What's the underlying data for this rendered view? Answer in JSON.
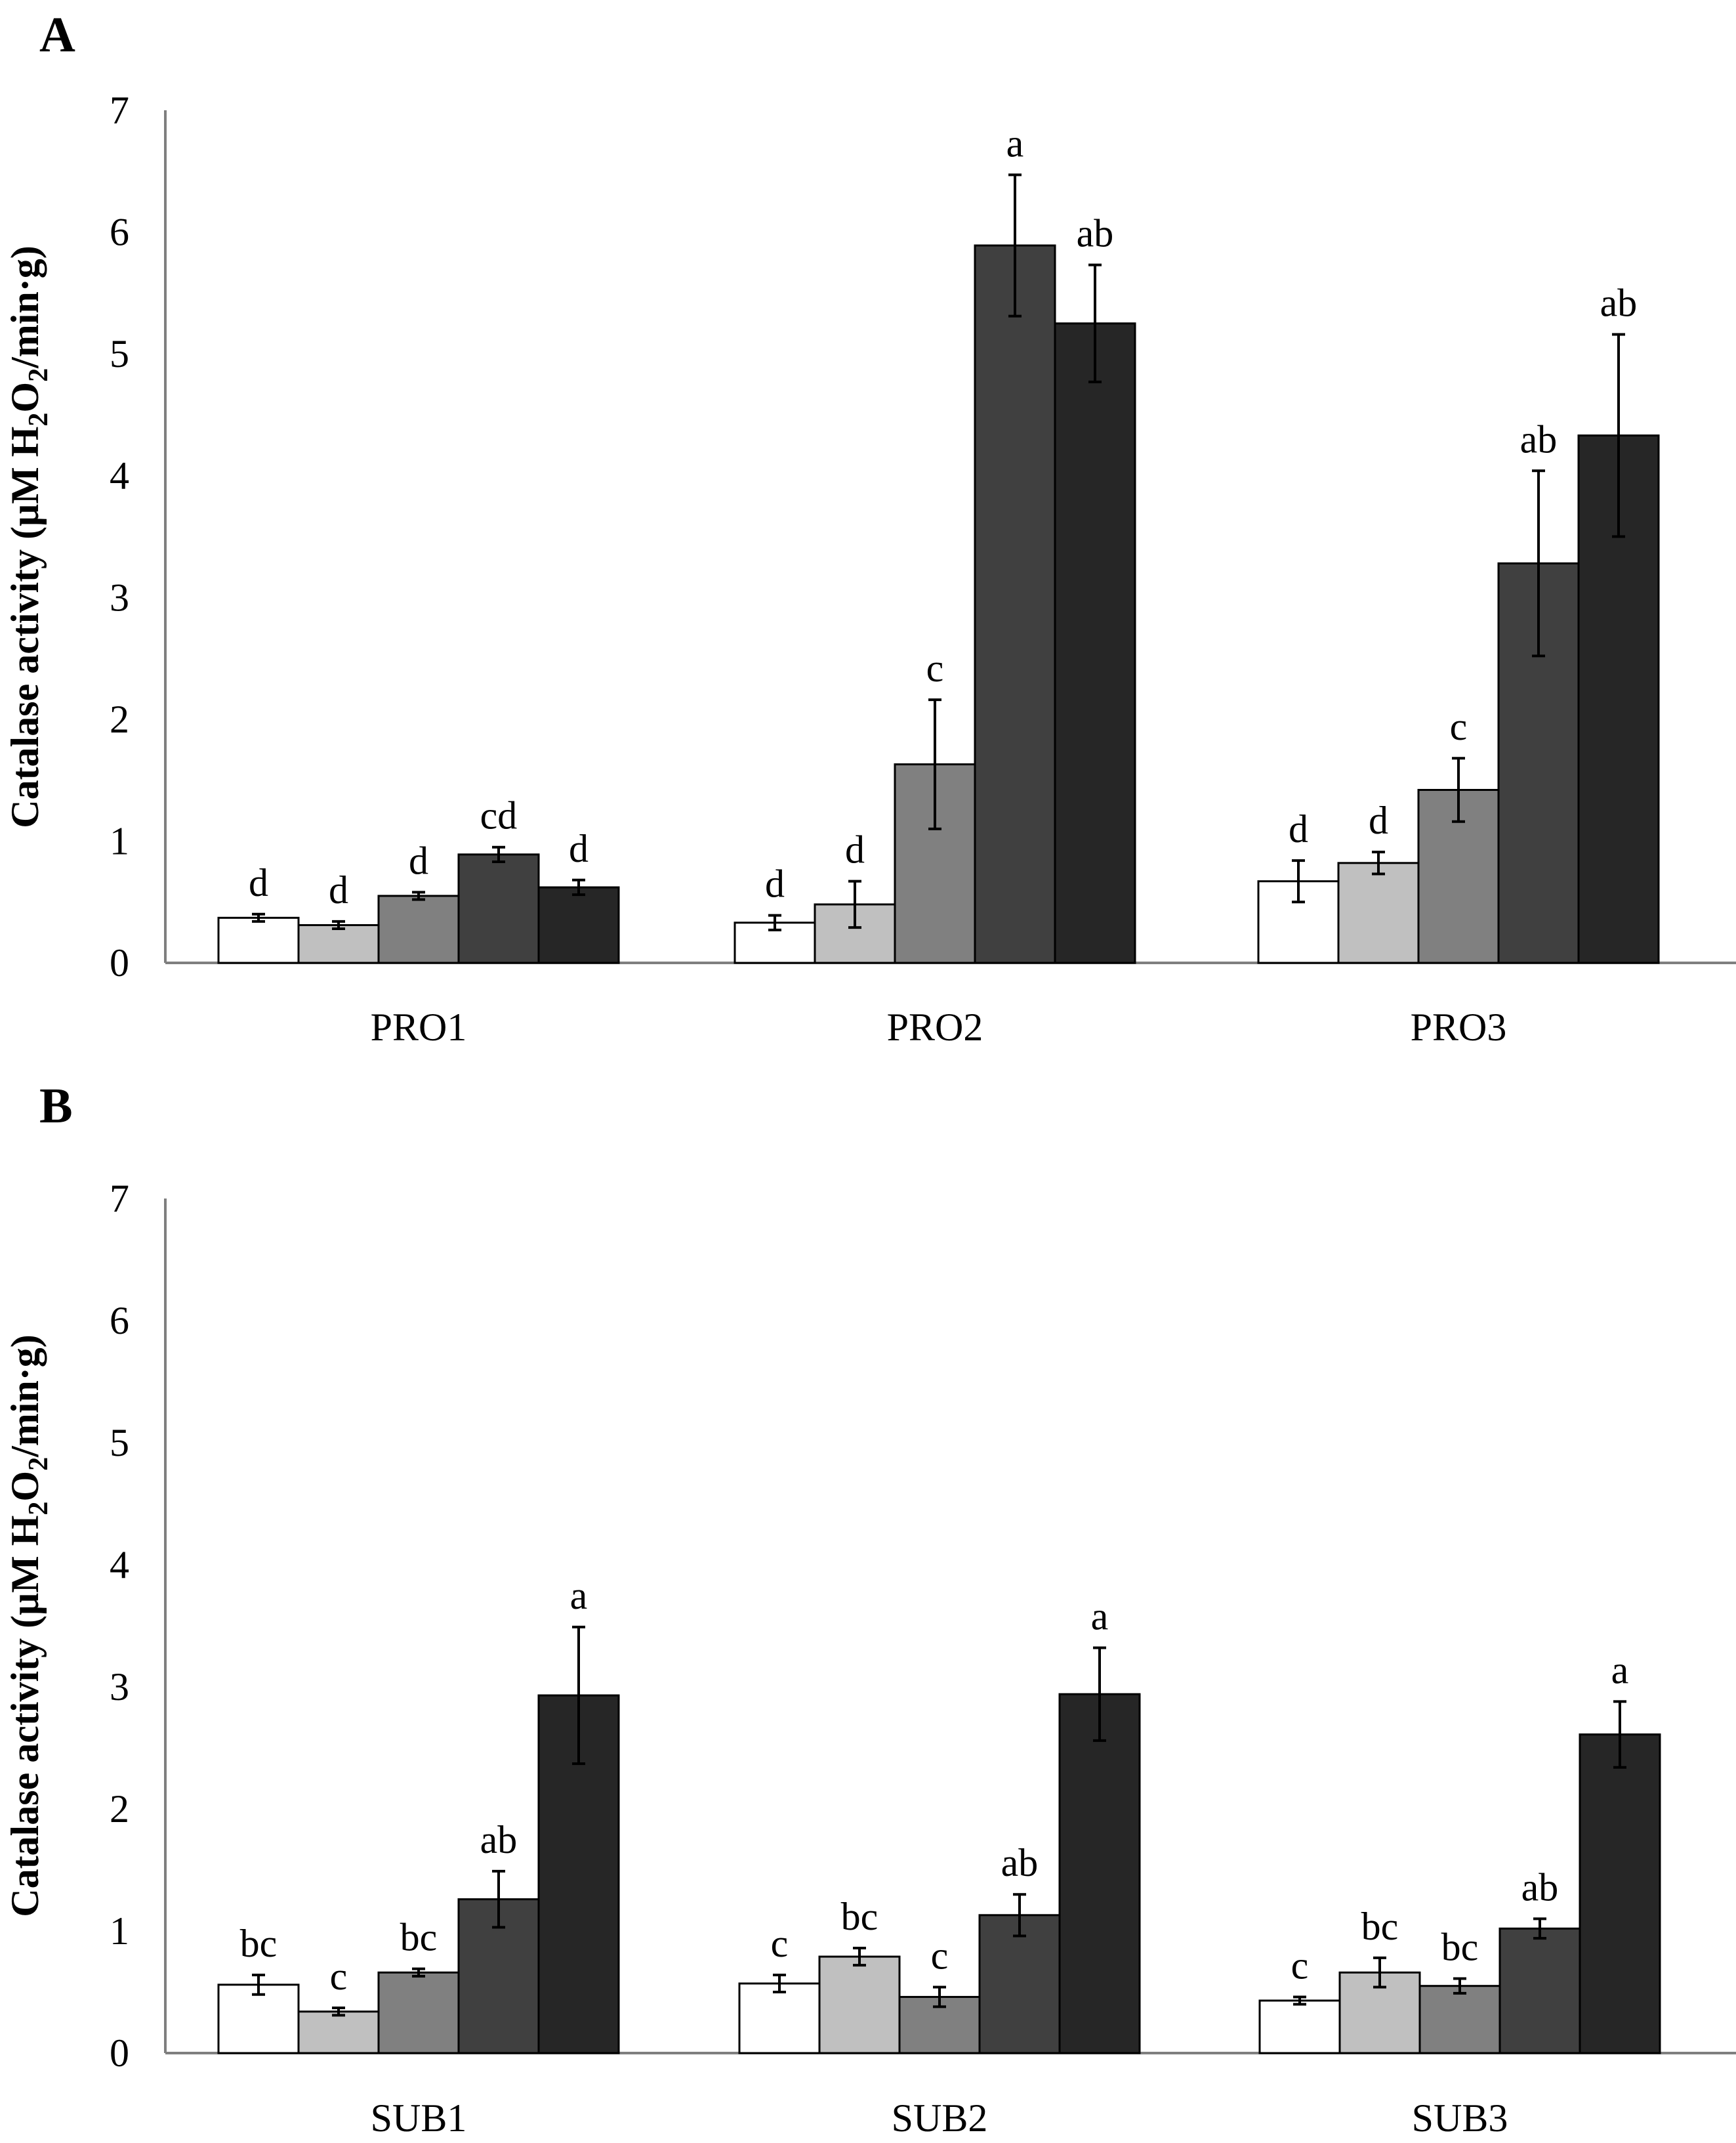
{
  "colors": {
    "bar_fills": [
      "#ffffff",
      "#c0c0c0",
      "#808080",
      "#404040",
      "#262626"
    ],
    "axis": "#7f7f7f",
    "bar_outline": "#000000"
  },
  "chart_data": [
    {
      "type": "bar",
      "panel_label": "A",
      "ylabel_main": "Catalase activity (μM H",
      "ylabel_sub1": "2",
      "ylabel_mid": "O",
      "ylabel_sub2": "2",
      "ylabel_end": "/min·g)",
      "ylim": [
        0,
        7
      ],
      "yticks": [
        "0",
        "1",
        "2",
        "3",
        "4",
        "5",
        "6",
        "7"
      ],
      "categories": [
        "PRO1",
        "PRO2",
        "PRO3"
      ],
      "series": [
        {
          "values": [
            0.37,
            0.33,
            0.67
          ],
          "errors": [
            0.03,
            0.06,
            0.17
          ],
          "labels": [
            "d",
            "d",
            "d"
          ]
        },
        {
          "values": [
            0.31,
            0.48,
            0.82
          ],
          "errors": [
            0.03,
            0.19,
            0.09
          ],
          "labels": [
            "d",
            "d",
            "d"
          ]
        },
        {
          "values": [
            0.55,
            1.63,
            1.42
          ],
          "errors": [
            0.03,
            0.53,
            0.26
          ],
          "labels": [
            "d",
            "c",
            "c"
          ]
        },
        {
          "values": [
            0.89,
            5.89,
            3.28
          ],
          "errors": [
            0.06,
            0.58,
            0.76
          ],
          "labels": [
            "cd",
            "a",
            "ab"
          ]
        },
        {
          "values": [
            0.62,
            5.25,
            4.33
          ],
          "errors": [
            0.06,
            0.48,
            0.83
          ],
          "labels": [
            "d",
            "ab",
            "ab"
          ]
        }
      ]
    },
    {
      "type": "bar",
      "panel_label": "B",
      "ylabel_main": "Catalase activity (μM H",
      "ylabel_sub1": "2",
      "ylabel_mid": "O",
      "ylabel_sub2": "2",
      "ylabel_end": "/min·g)",
      "ylim": [
        0,
        7
      ],
      "yticks": [
        "0",
        "1",
        "2",
        "3",
        "4",
        "5",
        "6",
        "7"
      ],
      "categories": [
        "SUB1",
        "SUB2",
        "SUB3"
      ],
      "series": [
        {
          "values": [
            0.56,
            0.57,
            0.43
          ],
          "errors": [
            0.08,
            0.07,
            0.03
          ],
          "labels": [
            "bc",
            "c",
            "c"
          ]
        },
        {
          "values": [
            0.34,
            0.79,
            0.66
          ],
          "errors": [
            0.03,
            0.07,
            0.12
          ],
          "labels": [
            "c",
            "bc",
            "bc"
          ]
        },
        {
          "values": [
            0.66,
            0.46,
            0.55
          ],
          "errors": [
            0.03,
            0.08,
            0.06
          ],
          "labels": [
            "bc",
            "c",
            "bc"
          ]
        },
        {
          "values": [
            1.26,
            1.13,
            1.02
          ],
          "errors": [
            0.23,
            0.17,
            0.08
          ],
          "labels": [
            "ab",
            "ab",
            "ab"
          ]
        },
        {
          "values": [
            2.93,
            2.94,
            2.61
          ],
          "errors": [
            0.56,
            0.38,
            0.27
          ],
          "labels": [
            "a",
            "a",
            "a"
          ]
        }
      ]
    }
  ]
}
